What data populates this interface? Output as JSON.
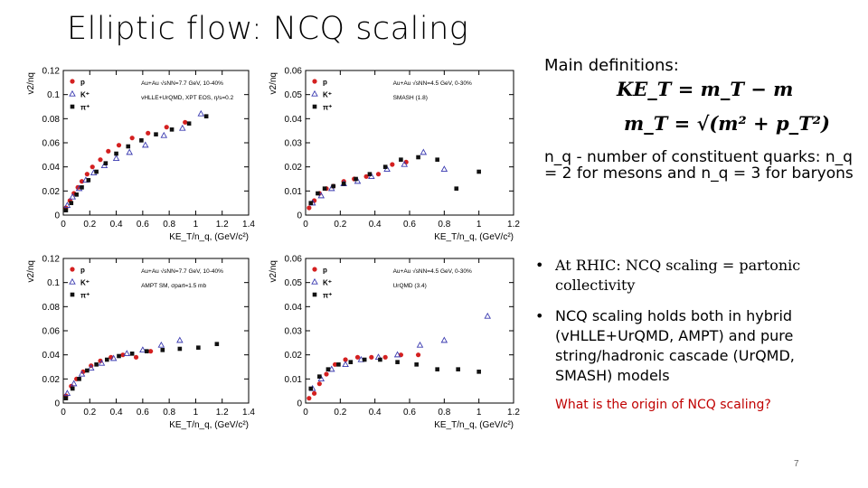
{
  "title": "Elliptic flow: NCQ scaling",
  "definitions": {
    "header": "Main definitions:",
    "eq1": "KE_T = m_T − m",
    "eq2": "m_T = √(m² + p_T²)",
    "nq_text": "n_q - number of constituent quarks: n_q = 2 for mesons and n_q = 3 for baryons"
  },
  "bullets": [
    {
      "marker": "•",
      "text": "At RHIC: NCQ scaling = partonic collectivity"
    },
    {
      "marker": "•",
      "text": "NCQ scaling holds both in hybrid (vHLLE+UrQMD, AMPT) and pure string/hadronic cascade (UrQMD, SMASH) models"
    }
  ],
  "question": "What is the origin of NCQ scaling?",
  "page_number": "7",
  "colors": {
    "p": "#d42020",
    "K": "#3a3ab0",
    "pi": "#111111",
    "question": "#c00000"
  },
  "chart_data": [
    {
      "type": "scatter",
      "ylabel": "v2/nq",
      "xlabel": "KE_T/n_q, (GeV/c²)",
      "xlim": [
        0,
        1.4
      ],
      "ylim": [
        0,
        0.12
      ],
      "xticks": [
        "0",
        "0.2",
        "0.4",
        "0.6",
        "0.8",
        "1",
        "1.2",
        "1.4"
      ],
      "yticks": [
        "0",
        "0.02",
        "0.04",
        "0.06",
        "0.08",
        "0.1",
        "0.12"
      ],
      "annotations": [
        "Au+Au √sNN=7.7 GeV, 10-40%",
        "vHLLE+UrQMD, XPT EOS, η/s=0.2"
      ],
      "legend": [
        "p",
        "K⁺",
        "π⁺"
      ],
      "series": [
        {
          "name": "p",
          "x": [
            0.02,
            0.05,
            0.08,
            0.11,
            0.14,
            0.18,
            0.22,
            0.28,
            0.34,
            0.42,
            0.52,
            0.64,
            0.78,
            0.92
          ],
          "y": [
            0.006,
            0.012,
            0.018,
            0.023,
            0.028,
            0.034,
            0.04,
            0.046,
            0.053,
            0.058,
            0.064,
            0.068,
            0.073,
            0.077
          ]
        },
        {
          "name": "K+",
          "x": [
            0.03,
            0.07,
            0.12,
            0.17,
            0.23,
            0.31,
            0.4,
            0.5,
            0.62,
            0.76,
            0.9,
            1.04
          ],
          "y": [
            0.008,
            0.015,
            0.022,
            0.029,
            0.035,
            0.041,
            0.047,
            0.052,
            0.058,
            0.066,
            0.072,
            0.084
          ]
        },
        {
          "name": "pi+",
          "x": [
            0.02,
            0.06,
            0.1,
            0.14,
            0.19,
            0.25,
            0.32,
            0.4,
            0.49,
            0.59,
            0.7,
            0.82,
            0.95,
            1.08
          ],
          "y": [
            0.004,
            0.01,
            0.017,
            0.023,
            0.029,
            0.036,
            0.043,
            0.051,
            0.057,
            0.062,
            0.067,
            0.071,
            0.076,
            0.082
          ]
        }
      ]
    },
    {
      "type": "scatter",
      "ylabel": "v2/nq",
      "xlabel": "KE_T/n_q, (GeV/c²)",
      "xlim": [
        0,
        1.2
      ],
      "ylim": [
        0,
        0.06
      ],
      "xticks": [
        "0",
        "0.2",
        "0.4",
        "0.6",
        "0.8",
        "1",
        "1.2"
      ],
      "yticks": [
        "0",
        "0.01",
        "0.02",
        "0.03",
        "0.04",
        "0.05",
        "0.06"
      ],
      "annotations": [
        "Au+Au √sNN=4.5 GeV, 0-30%",
        "SMASH (1.8)"
      ],
      "legend": [
        "p",
        "K⁺",
        "π⁺"
      ],
      "series": [
        {
          "name": "p",
          "x": [
            0.02,
            0.05,
            0.08,
            0.12,
            0.16,
            0.22,
            0.28,
            0.35,
            0.42,
            0.5,
            0.58
          ],
          "y": [
            0.003,
            0.006,
            0.009,
            0.011,
            0.012,
            0.014,
            0.015,
            0.016,
            0.017,
            0.021,
            0.022
          ]
        },
        {
          "name": "K+",
          "x": [
            0.04,
            0.09,
            0.15,
            0.22,
            0.3,
            0.38,
            0.47,
            0.57,
            0.68,
            0.8
          ],
          "y": [
            0.005,
            0.008,
            0.011,
            0.013,
            0.014,
            0.016,
            0.019,
            0.021,
            0.026,
            0.019
          ]
        },
        {
          "name": "pi+",
          "x": [
            0.03,
            0.07,
            0.11,
            0.16,
            0.22,
            0.29,
            0.37,
            0.46,
            0.55,
            0.65,
            0.76,
            0.87,
            1.0
          ],
          "y": [
            0.005,
            0.009,
            0.011,
            0.012,
            0.013,
            0.015,
            0.017,
            0.02,
            0.023,
            0.024,
            0.023,
            0.011,
            0.018
          ]
        }
      ]
    },
    {
      "type": "scatter",
      "ylabel": "v2/nq",
      "xlabel": "KE_T/n_q, (GeV/c²)",
      "xlim": [
        0,
        1.4
      ],
      "ylim": [
        0,
        0.12
      ],
      "xticks": [
        "0",
        "0.2",
        "0.4",
        "0.6",
        "0.8",
        "1",
        "1.2",
        "1.4"
      ],
      "yticks": [
        "0",
        "0.02",
        "0.04",
        "0.06",
        "0.08",
        "0.1",
        "0.12"
      ],
      "annotations": [
        "Au+Au √sNN=7.7 GeV, 10-40%",
        "AMPT SM, σpart=1.5 mb"
      ],
      "legend": [
        "p",
        "K⁺",
        "π⁺"
      ],
      "series": [
        {
          "name": "p",
          "x": [
            0.02,
            0.06,
            0.1,
            0.15,
            0.21,
            0.28,
            0.36,
            0.45,
            0.55,
            0.66
          ],
          "y": [
            0.006,
            0.014,
            0.02,
            0.026,
            0.031,
            0.035,
            0.038,
            0.04,
            0.038,
            0.043
          ]
        },
        {
          "name": "K+",
          "x": [
            0.03,
            0.08,
            0.14,
            0.21,
            0.29,
            0.38,
            0.48,
            0.6,
            0.74,
            0.88
          ],
          "y": [
            0.008,
            0.016,
            0.024,
            0.029,
            0.033,
            0.037,
            0.041,
            0.044,
            0.048,
            0.052
          ]
        },
        {
          "name": "pi+",
          "x": [
            0.02,
            0.07,
            0.12,
            0.18,
            0.25,
            0.33,
            0.42,
            0.52,
            0.63,
            0.75,
            0.88,
            1.02,
            1.16
          ],
          "y": [
            0.004,
            0.012,
            0.02,
            0.027,
            0.032,
            0.036,
            0.039,
            0.041,
            0.043,
            0.044,
            0.045,
            0.046,
            0.049
          ]
        }
      ]
    },
    {
      "type": "scatter",
      "ylabel": "v2/nq",
      "xlabel": "KE_T/n_q, (GeV/c²)",
      "xlim": [
        0,
        1.2
      ],
      "ylim": [
        0,
        0.06
      ],
      "xticks": [
        "0",
        "0.2",
        "0.4",
        "0.6",
        "0.8",
        "1",
        "1.2"
      ],
      "yticks": [
        "0",
        "0.01",
        "0.02",
        "0.03",
        "0.04",
        "0.05",
        "0.06"
      ],
      "annotations": [
        "Au+Au √sNN=4.5 GeV, 0-30%",
        "UrQMD (3.4)"
      ],
      "legend": [
        "p",
        "K⁺",
        "π⁺"
      ],
      "series": [
        {
          "name": "p",
          "x": [
            0.02,
            0.05,
            0.08,
            0.12,
            0.17,
            0.23,
            0.3,
            0.38,
            0.46,
            0.55,
            0.65
          ],
          "y": [
            0.002,
            0.004,
            0.008,
            0.012,
            0.016,
            0.018,
            0.019,
            0.019,
            0.019,
            0.02,
            0.02
          ]
        },
        {
          "name": "K+",
          "x": [
            0.04,
            0.09,
            0.15,
            0.23,
            0.32,
            0.42,
            0.53,
            0.66,
            0.8,
            1.05
          ],
          "y": [
            0.006,
            0.01,
            0.014,
            0.016,
            0.018,
            0.019,
            0.02,
            0.024,
            0.026,
            0.036
          ]
        },
        {
          "name": "pi+",
          "x": [
            0.03,
            0.08,
            0.13,
            0.19,
            0.26,
            0.34,
            0.43,
            0.53,
            0.64,
            0.76,
            0.88,
            1.0
          ],
          "y": [
            0.006,
            0.011,
            0.014,
            0.016,
            0.017,
            0.018,
            0.018,
            0.017,
            0.016,
            0.014,
            0.014,
            0.013
          ]
        }
      ]
    }
  ]
}
